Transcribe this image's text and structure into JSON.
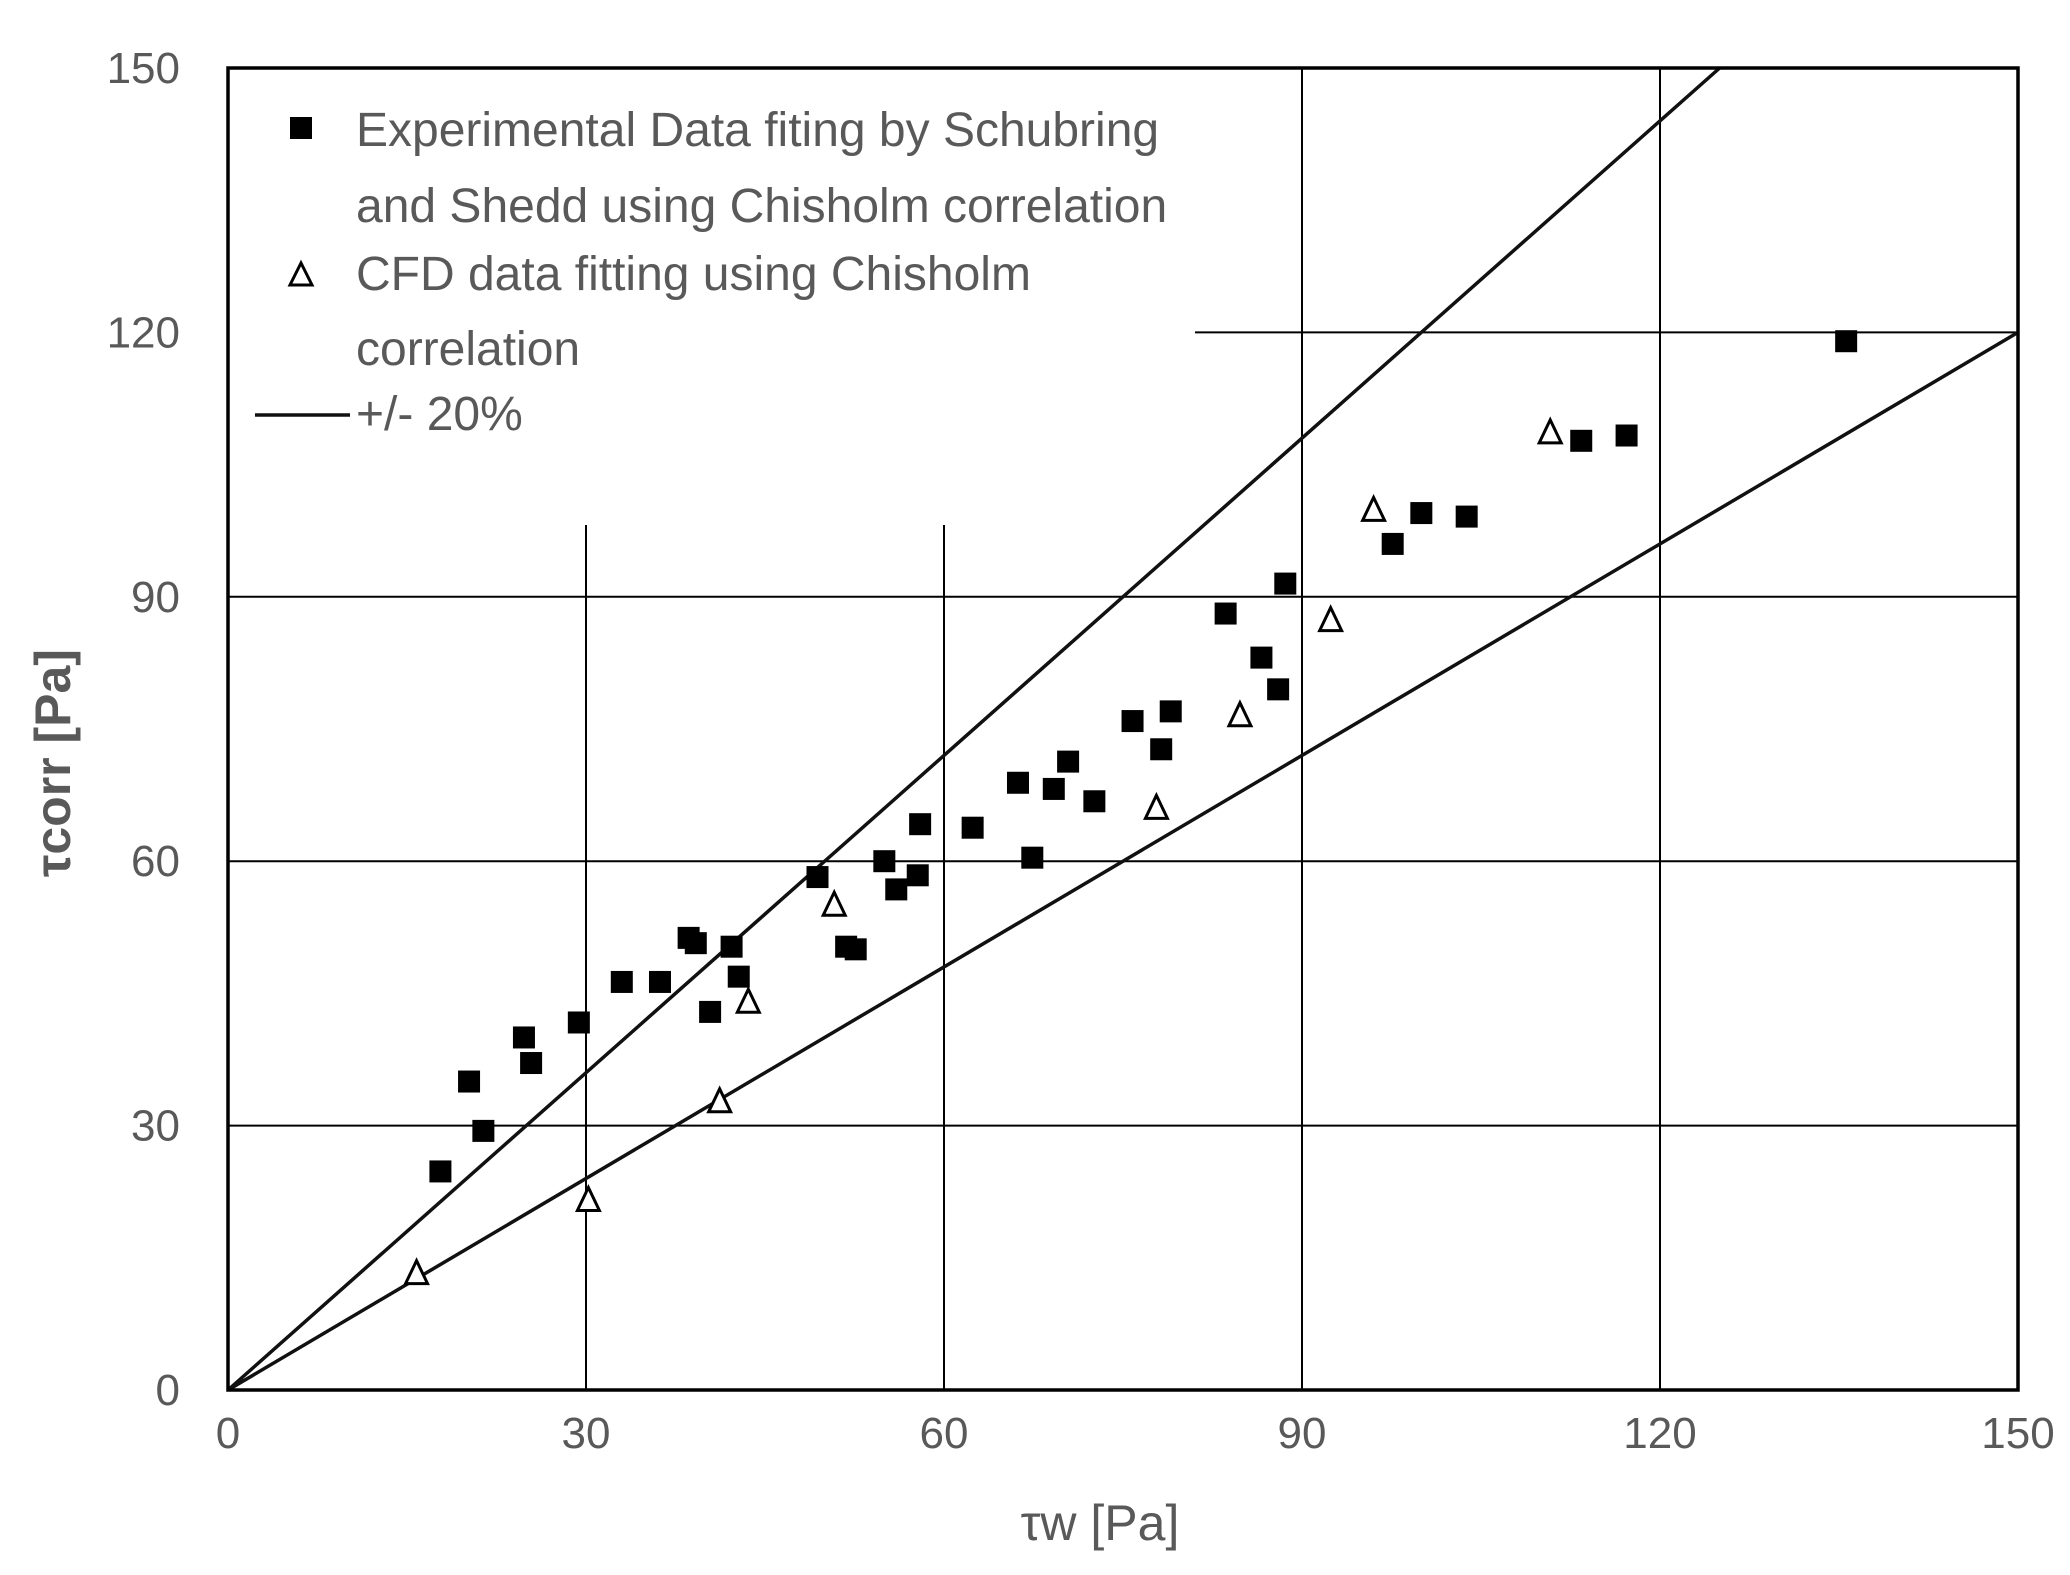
{
  "chart_data": {
    "type": "scatter",
    "title": "",
    "xlabel": "τw [Pa]",
    "ylabel": "τcorr [Pa]",
    "xlim": [
      0,
      150
    ],
    "ylim": [
      0,
      150
    ],
    "xticks": [
      0,
      30,
      60,
      90,
      120,
      150
    ],
    "yticks": [
      0,
      30,
      60,
      90,
      120,
      150
    ],
    "grid": true,
    "legend_position": "top-left",
    "series": [
      {
        "name": "Experimental Data fiting by Schubring and Shedd using  Chisholm correlation",
        "legend_lines": [
          "Experimental Data fiting by Schubring",
          "and Shedd using  Chisholm correlation"
        ],
        "marker": "filled-square",
        "color": "#000000",
        "points": [
          [
            17.8,
            24.8
          ],
          [
            20.2,
            35.0
          ],
          [
            21.4,
            29.4
          ],
          [
            24.8,
            40.0
          ],
          [
            25.4,
            37.1
          ],
          [
            29.4,
            41.7
          ],
          [
            33.0,
            46.3
          ],
          [
            36.2,
            46.3
          ],
          [
            38.6,
            51.3
          ],
          [
            39.2,
            50.7
          ],
          [
            40.4,
            42.9
          ],
          [
            42.2,
            50.3
          ],
          [
            42.8,
            46.9
          ],
          [
            49.4,
            58.2
          ],
          [
            51.8,
            50.3
          ],
          [
            52.6,
            50.0
          ],
          [
            55.0,
            60.0
          ],
          [
            56.0,
            56.8
          ],
          [
            57.8,
            58.4
          ],
          [
            58.0,
            64.2
          ],
          [
            62.4,
            63.8
          ],
          [
            66.2,
            68.9
          ],
          [
            67.4,
            60.4
          ],
          [
            69.2,
            68.2
          ],
          [
            70.4,
            71.3
          ],
          [
            72.6,
            66.8
          ],
          [
            75.8,
            75.9
          ],
          [
            78.2,
            72.7
          ],
          [
            79.0,
            77.0
          ],
          [
            83.6,
            88.1
          ],
          [
            86.6,
            83.1
          ],
          [
            88.0,
            79.5
          ],
          [
            88.6,
            91.5
          ],
          [
            97.6,
            96.0
          ],
          [
            100.0,
            99.5
          ],
          [
            103.8,
            99.1
          ],
          [
            113.4,
            107.7
          ],
          [
            117.2,
            108.3
          ],
          [
            135.6,
            119.0
          ]
        ]
      },
      {
        "name": "CFD data fitting using  Chisholm correlation",
        "legend_lines": [
          "CFD data fitting using  Chisholm",
          "correlation"
        ],
        "marker": "open-triangle",
        "color": "#000000",
        "points": [
          [
            15.8,
            13.2
          ],
          [
            30.2,
            21.5
          ],
          [
            41.2,
            32.7
          ],
          [
            43.6,
            44.0
          ],
          [
            50.8,
            55.0
          ],
          [
            77.8,
            66.0
          ],
          [
            84.8,
            76.5
          ],
          [
            92.4,
            87.3
          ],
          [
            96.0,
            99.8
          ],
          [
            110.8,
            108.6
          ]
        ]
      },
      {
        "name": "+/- 20%",
        "type": "line",
        "color": "#111111",
        "lines": [
          {
            "label": "+20%",
            "x": [
              0,
              150
            ],
            "y": [
              0,
              180
            ]
          },
          {
            "label": "-20%",
            "x": [
              0,
              150
            ],
            "y": [
              0,
              120
            ]
          }
        ]
      }
    ]
  }
}
